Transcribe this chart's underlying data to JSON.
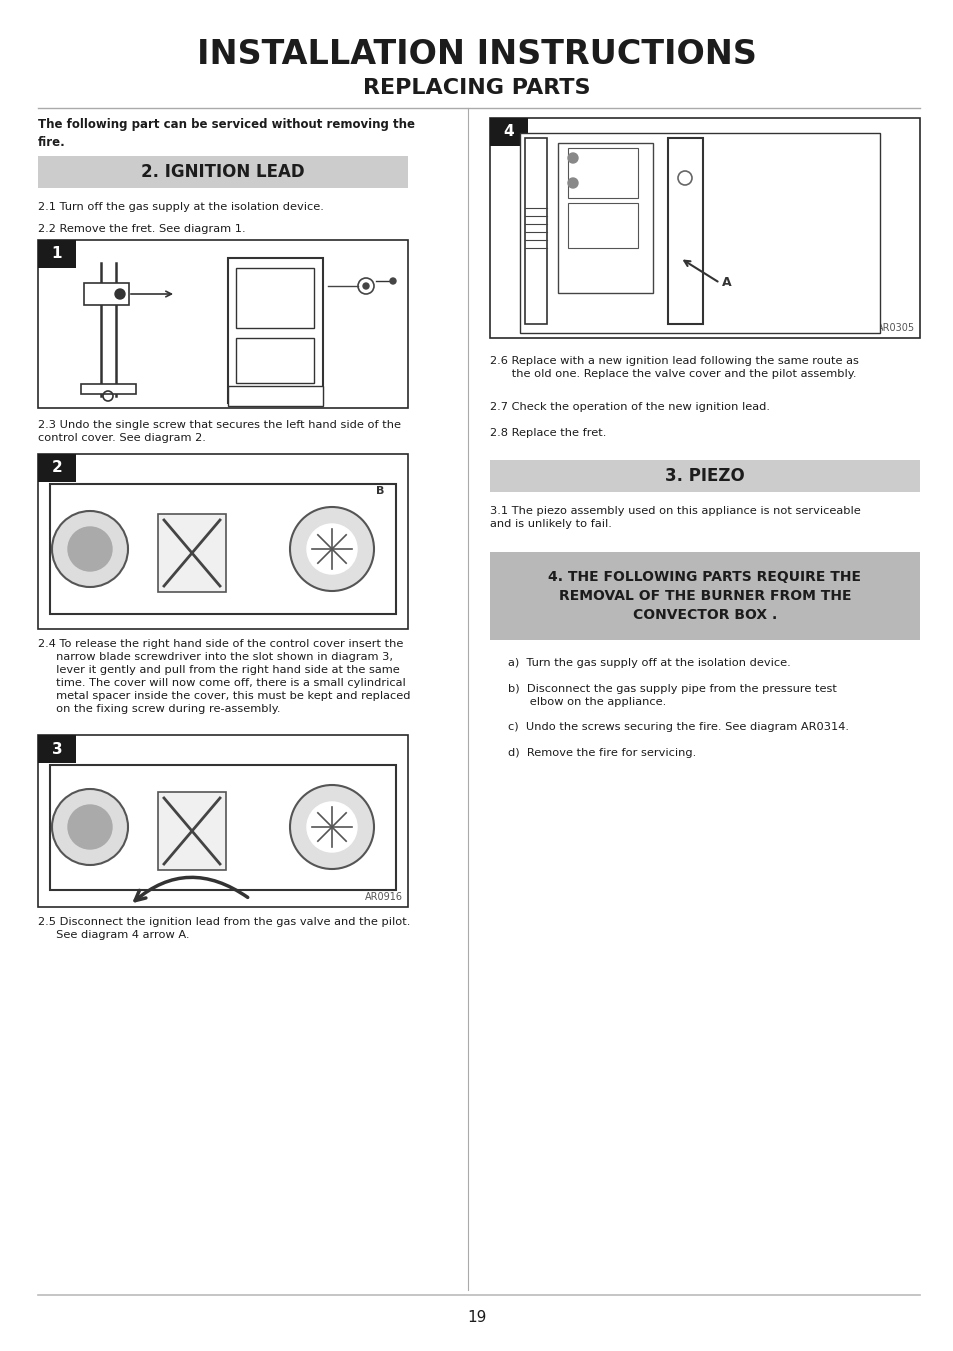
{
  "title_main": "INSTALLATION INSTRUCTIONS",
  "title_sub": "REPLACING PARTS",
  "bg_color": "#ffffff",
  "page_number": "19",
  "sections": {
    "intro_bold": "The following part can be serviced without removing the\nfire.",
    "section2_title": "2. IGNITION LEAD",
    "step21": "2.1 Turn off the gas supply at the isolation device.",
    "step22": "2.2 Remove the fret. See diagram 1.",
    "step23": "2.3 Undo the single screw that secures the left hand side of the\ncontrol cover. See diagram 2.",
    "step24": "2.4 To release the right hand side of the control cover insert the\n     narrow blade screwdriver into the slot shown in diagram 3,\n     lever it gently and pull from the right hand side at the same\n     time. The cover will now come off, there is a small cylindrical\n     metal spacer inside the cover, this must be kept and replaced\n     on the fixing screw during re-assembly.",
    "step25": "2.5 Disconnect the ignition lead from the gas valve and the pilot.\n     See diagram 4 arrow A.",
    "step26": "2.6 Replace with a new ignition lead following the same route as\n      the old one. Replace the valve cover and the pilot assembly.",
    "step27": "2.7 Check the operation of the new ignition lead.",
    "step28": "2.8 Replace the fret.",
    "section3_title": "3. PIEZO",
    "step31": "3.1 The piezo assembly used on this appliance is not serviceable\nand is unlikely to fail.",
    "section4_title": "4. THE FOLLOWING PARTS REQUIRE THE\nREMOVAL OF THE BURNER FROM THE\nCONVECTOR BOX .",
    "step4a": "a)  Turn the gas supply off at the isolation device.",
    "step4b": "b)  Disconnect the gas supply pipe from the pressure test\n      elbow on the appliance.",
    "step4c": "c)  Undo the screws securing the fire. See diagram AR0314.",
    "step4d": "d)  Remove the fire for servicing."
  },
  "colors": {
    "light_gray_box": "#cccccc",
    "dark_gray_box": "#b8b8b8",
    "black": "#1c1c1c",
    "dark_text": "#1c1c1c",
    "border": "#333333",
    "diag_label_bg": "#1a1a1a",
    "divider": "#aaaaaa",
    "footer_line": "#bbbbbb",
    "diagram_bg": "#f8f8f8"
  },
  "font_sizes": {
    "title_main": 24,
    "title_sub": 16,
    "section_header": 12,
    "body": 8.2,
    "body_bold": 8.5,
    "page_num": 11,
    "diagram_ref": 7.5,
    "section4_header": 10
  }
}
